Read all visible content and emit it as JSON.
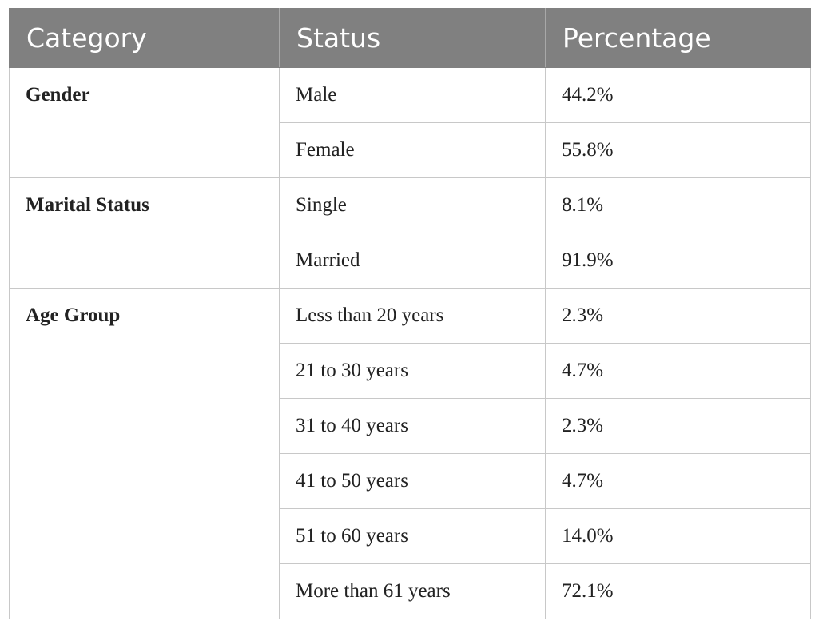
{
  "table": {
    "headers": [
      "Category",
      "Status",
      "Percentage"
    ],
    "groups": [
      {
        "category": "Gender",
        "rows": [
          {
            "status": "Male",
            "percentage": "44.2%"
          },
          {
            "status": "Female",
            "percentage": "55.8%"
          }
        ]
      },
      {
        "category": "Marital Status",
        "rows": [
          {
            "status": "Single",
            "percentage": "8.1%"
          },
          {
            "status": "Married",
            "percentage": "91.9%"
          }
        ]
      },
      {
        "category": "Age Group",
        "rows": [
          {
            "status": "Less than 20 years",
            "percentage": "2.3%"
          },
          {
            "status": "21 to 30 years",
            "percentage": "4.7%"
          },
          {
            "status": "31 to 40 years",
            "percentage": "2.3%"
          },
          {
            "status": "41 to 50 years",
            "percentage": "4.7%"
          },
          {
            "status": "51 to 60 years",
            "percentage": "14.0%"
          },
          {
            "status": "More than 61 years",
            "percentage": "72.1%"
          }
        ]
      }
    ]
  }
}
